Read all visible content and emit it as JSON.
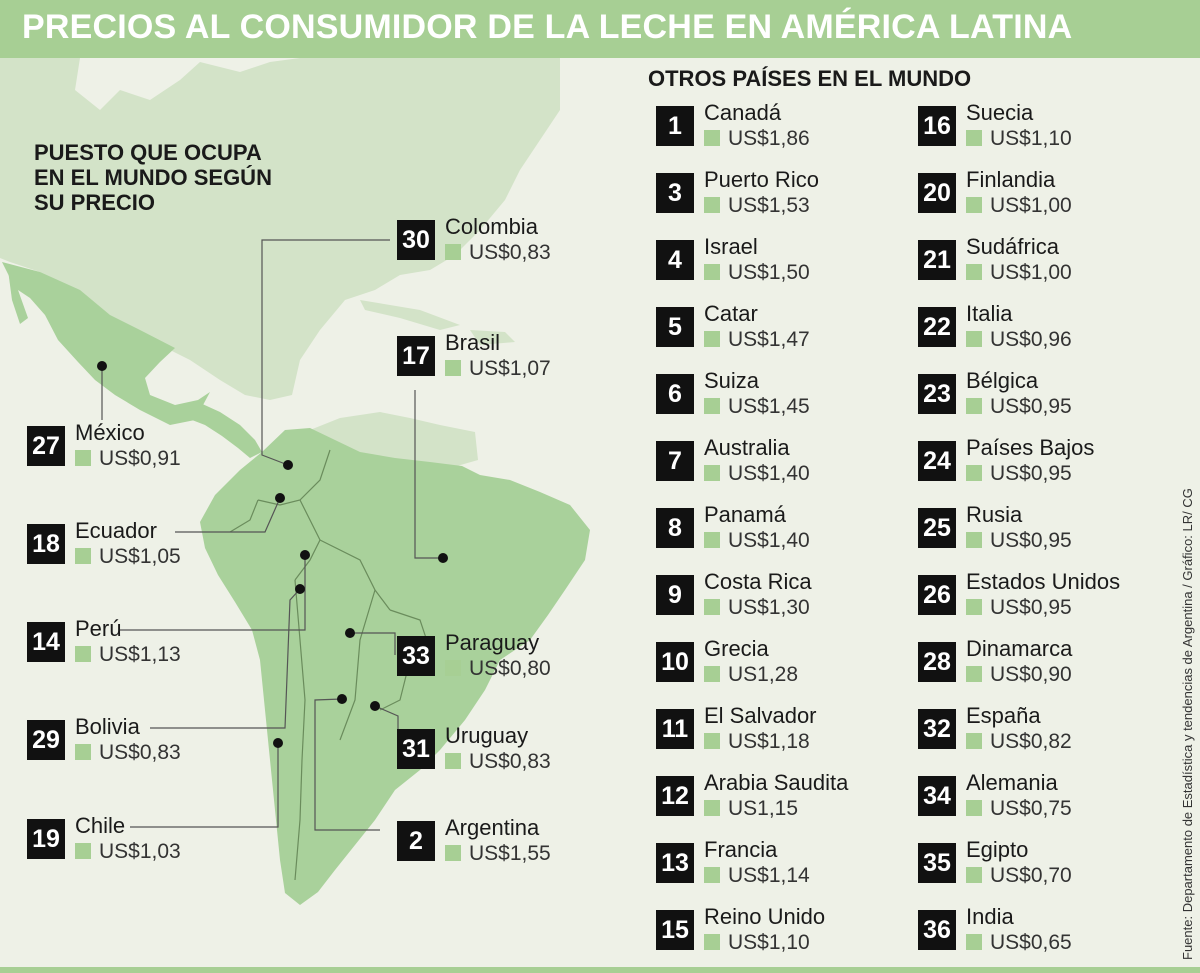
{
  "title": "PRECIOS AL CONSUMIDOR DE LA LECHE EN AMÉRICA LATINA",
  "map_heading": "PUESTO QUE OCUPA EN EL MUNDO SEGÚN SU PRECIO",
  "world_heading": "OTROS PAÍSES EN EL MUNDO",
  "source": "Fuente: Departamento de Estadística y tendencias de Argentina / Gráfico: LR/ CG",
  "colors": {
    "accent": "#a7cf94",
    "land": "#a9d19b",
    "land_light": "#d3e3c8",
    "background": "#eef1e7",
    "rank_box": "#111111"
  },
  "latin_america": [
    {
      "rank": "30",
      "country": "Colombia",
      "price": "US$0,83"
    },
    {
      "rank": "17",
      "country": "Brasil",
      "price": "US$1,07"
    },
    {
      "rank": "27",
      "country": "México",
      "price": "US$0,91"
    },
    {
      "rank": "18",
      "country": "Ecuador",
      "price": "US$1,05"
    },
    {
      "rank": "14",
      "country": "Perú",
      "price": "US$1,13"
    },
    {
      "rank": "33",
      "country": "Paraguay",
      "price": "US$0,80"
    },
    {
      "rank": "29",
      "country": "Bolivia",
      "price": "US$0,83"
    },
    {
      "rank": "31",
      "country": "Uruguay",
      "price": "US$0,83"
    },
    {
      "rank": "19",
      "country": "Chile",
      "price": "US$1,03"
    },
    {
      "rank": "2",
      "country": "Argentina",
      "price": "US$1,55"
    }
  ],
  "world_col1": [
    {
      "rank": "1",
      "country": "Canadá",
      "price": "US$1,86"
    },
    {
      "rank": "3",
      "country": "Puerto Rico",
      "price": "US$1,53"
    },
    {
      "rank": "4",
      "country": "Israel",
      "price": "US$1,50"
    },
    {
      "rank": "5",
      "country": "Catar",
      "price": "US$1,47"
    },
    {
      "rank": "6",
      "country": "Suiza",
      "price": "US$1,45"
    },
    {
      "rank": "7",
      "country": "Australia",
      "price": "US$1,40"
    },
    {
      "rank": "8",
      "country": "Panamá",
      "price": "US$1,40"
    },
    {
      "rank": "9",
      "country": "Costa Rica",
      "price": "US$1,30"
    },
    {
      "rank": "10",
      "country": "Grecia",
      "price": "US1,28"
    },
    {
      "rank": "11",
      "country": "El Salvador",
      "price": "US$1,18"
    },
    {
      "rank": "12",
      "country": "Arabia Saudita",
      "price": "US1,15"
    },
    {
      "rank": "13",
      "country": "Francia",
      "price": "US$1,14"
    },
    {
      "rank": "15",
      "country": "Reino Unido",
      "price": "US$1,10"
    }
  ],
  "world_col2": [
    {
      "rank": "16",
      "country": "Suecia",
      "price": "US$1,10"
    },
    {
      "rank": "20",
      "country": "Finlandia",
      "price": "US$1,00"
    },
    {
      "rank": "21",
      "country": "Sudáfrica",
      "price": "US$1,00"
    },
    {
      "rank": "22",
      "country": "Italia",
      "price": "US$0,96"
    },
    {
      "rank": "23",
      "country": "Bélgica",
      "price": "US$0,95"
    },
    {
      "rank": "24",
      "country": "Países Bajos",
      "price": "US$0,95"
    },
    {
      "rank": "25",
      "country": "Rusia",
      "price": "US$0,95"
    },
    {
      "rank": "26",
      "country": "Estados Unidos",
      "price": "US$0,95"
    },
    {
      "rank": "28",
      "country": "Dinamarca",
      "price": "US$0,90"
    },
    {
      "rank": "32",
      "country": "España",
      "price": "US$0,82"
    },
    {
      "rank": "34",
      "country": "Alemania",
      "price": "US$0,75"
    },
    {
      "rank": "35",
      "country": "Egipto",
      "price": "US$0,70"
    },
    {
      "rank": "36",
      "country": "India",
      "price": "US$0,65"
    }
  ]
}
